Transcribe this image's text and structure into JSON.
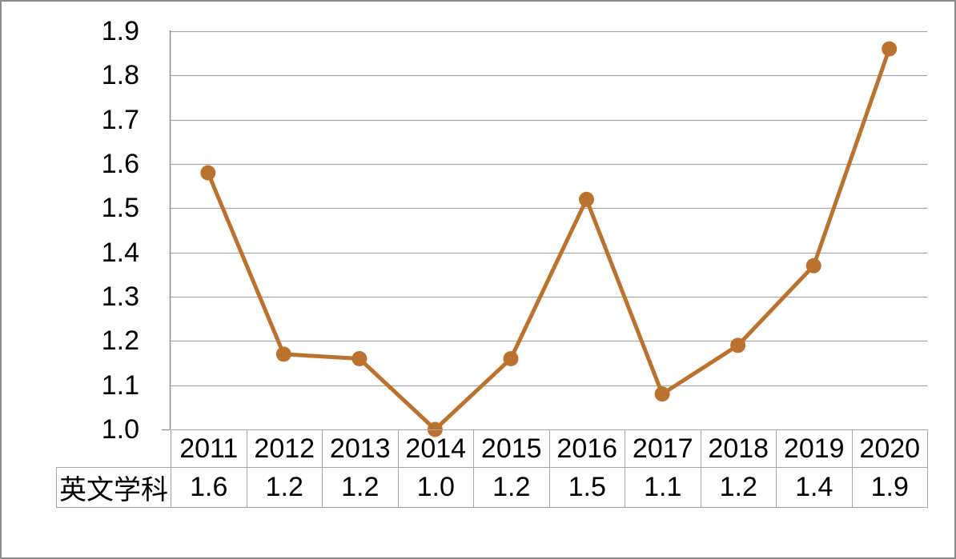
{
  "chart_data": {
    "type": "line",
    "title": "",
    "xlabel": "",
    "ylabel": "",
    "categories": [
      "2011",
      "2012",
      "2013",
      "2014",
      "2015",
      "2016",
      "2017",
      "2018",
      "2019",
      "2020"
    ],
    "series": [
      {
        "name": "英文学科",
        "values": [
          1.58,
          1.17,
          1.16,
          1.0,
          1.16,
          1.52,
          1.08,
          1.19,
          1.37,
          1.86
        ],
        "table_values": [
          "1.6",
          "1.2",
          "1.2",
          "1.0",
          "1.2",
          "1.5",
          "1.1",
          "1.2",
          "1.4",
          "1.9"
        ]
      }
    ],
    "ylim": [
      1.0,
      1.9
    ],
    "ytick_step": 0.1,
    "ytick_labels": [
      "1.9",
      "1.8",
      "1.7",
      "1.6",
      "1.5",
      "1.4",
      "1.3",
      "1.2",
      "1.1",
      "1.0"
    ],
    "grid": "horizontal",
    "legend_position": "data-table-below-chart",
    "marker": "circle",
    "colors": {
      "series_line": "#BC722F",
      "gridline": "#A6A6A6",
      "axis_line": "#8C8C8C",
      "table_border": "#A6A6A6",
      "text": "#000000",
      "background": "#FFFFFF",
      "outer_border": "#8C8C8C"
    }
  }
}
